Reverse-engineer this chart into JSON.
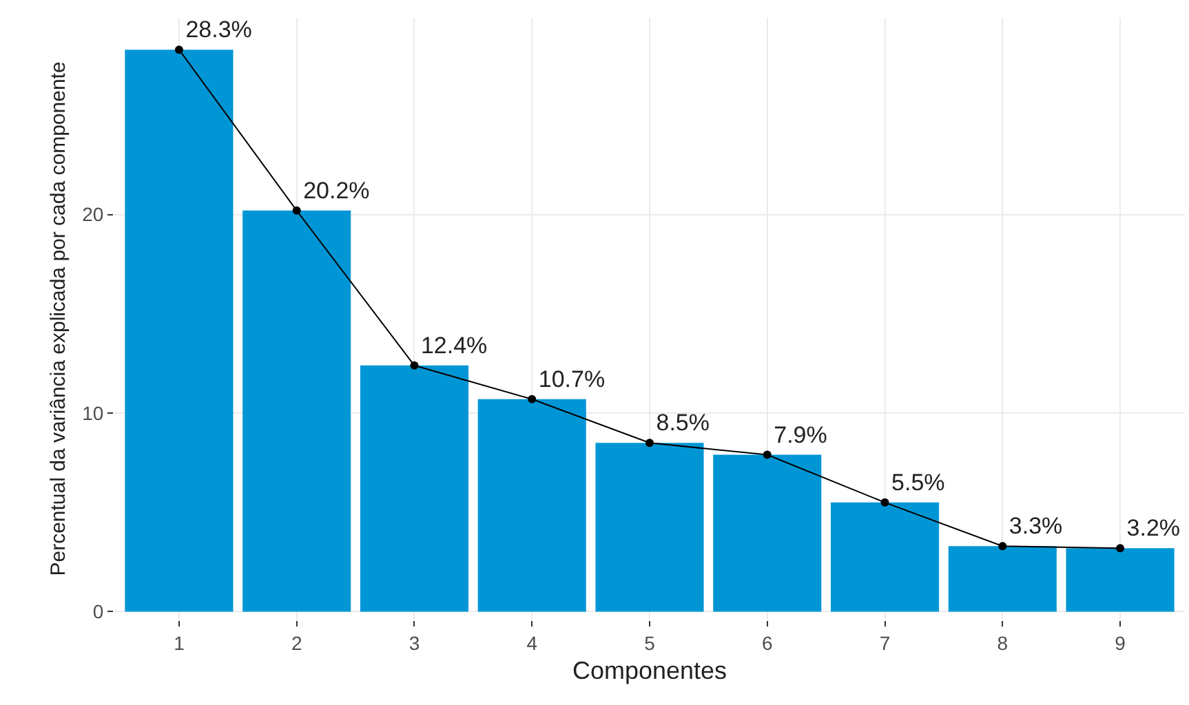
{
  "chart_data": {
    "type": "bar",
    "xlabel": "Componentes",
    "ylabel": "Percentual da variância explicada por cada componente",
    "categories": [
      "1",
      "2",
      "3",
      "4",
      "5",
      "6",
      "7",
      "8",
      "9"
    ],
    "series": [
      {
        "color": "#0096d6",
        "values": [
          28.3,
          20.2,
          12.4,
          10.7,
          8.5,
          7.9,
          5.5,
          3.3,
          3.2
        ]
      },
      {
        "type": "line",
        "color": "#000000",
        "marker": "circle",
        "line_style": "solid",
        "values": [
          28.3,
          20.2,
          12.4,
          10.7,
          8.5,
          7.9,
          5.5,
          3.3,
          3.2
        ],
        "value_labels": [
          "28.3%",
          "20.2%",
          "12.4%",
          "10.7%",
          "8.5%",
          "7.9%",
          "5.5%",
          "3.3%",
          "3.2%"
        ]
      }
    ],
    "ylim": [
      -0.4,
      29.9
    ],
    "yticks": [
      0,
      10,
      20
    ],
    "grid": true
  }
}
